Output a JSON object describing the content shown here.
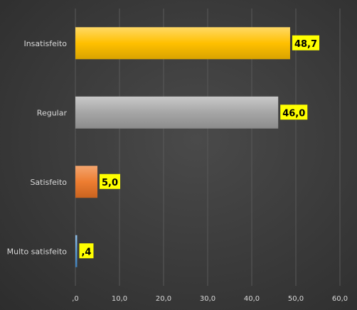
{
  "chart_data": {
    "type": "bar",
    "orientation": "horizontal",
    "categories": [
      "Insatisfeito",
      "Regular",
      "Satisfeito",
      "Multo satisfeito"
    ],
    "values": [
      48.7,
      46.0,
      5.0,
      0.4
    ],
    "value_labels": [
      "48,7",
      "46,0",
      "5,0",
      ",4"
    ],
    "xlim": [
      0,
      60
    ],
    "xticks": [
      ",0",
      "10,0",
      "20,0",
      "30,0",
      "40,0",
      "50,0",
      "60,0"
    ],
    "xtick_values": [
      0,
      10,
      20,
      30,
      40,
      50,
      60
    ],
    "grid": true,
    "legend": "none",
    "colors": {
      "bars": [
        "#ffc000",
        "#a6a6a6",
        "#ed7d31",
        "#5b9bd5"
      ],
      "data_label_background": "#ffff00",
      "data_label_text": "#000000",
      "background": "#3a3a3a",
      "text": "#d9d9d9",
      "gridline": "#595959"
    }
  }
}
